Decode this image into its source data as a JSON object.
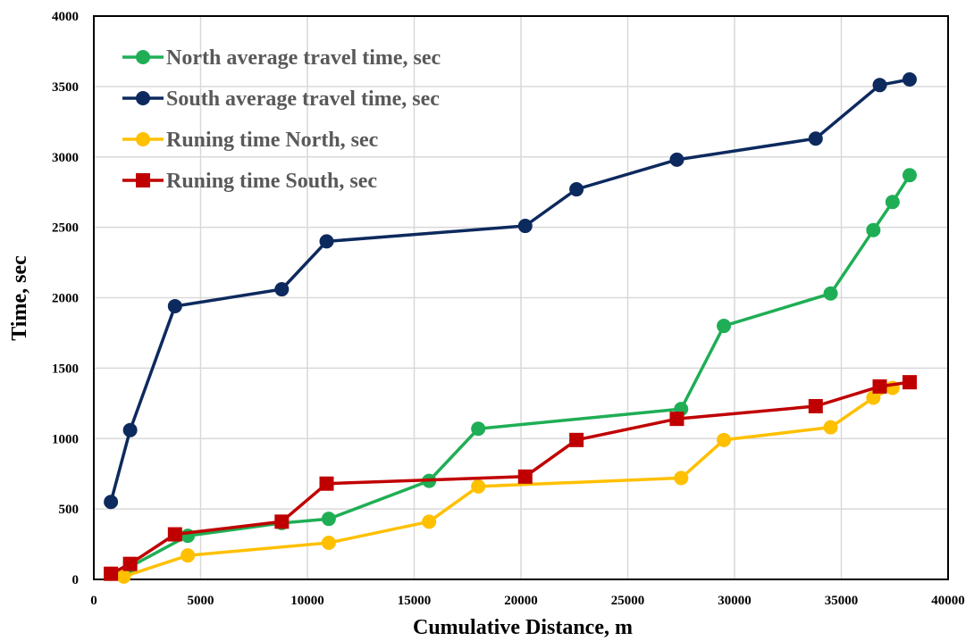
{
  "chart_data": {
    "type": "line",
    "xlabel": "Cumulative Distance, m",
    "ylabel": "Time, sec",
    "xlim": [
      0,
      40000
    ],
    "ylim": [
      0,
      4000
    ],
    "xticks": [
      "0",
      "5000",
      "10000",
      "15000",
      "20000",
      "25000",
      "30000",
      "35000",
      "40000"
    ],
    "yticks": [
      "0",
      "500",
      "1000",
      "1500",
      "2000",
      "2500",
      "3000",
      "3500",
      "4000"
    ],
    "grid": true,
    "legend_position": "top-left",
    "series": [
      {
        "name": "North average travel time, sec",
        "color": "#1fae55",
        "marker": "circle",
        "x": [
          800,
          1700,
          4400,
          8800,
          11000,
          15700,
          18000,
          27500,
          29500,
          34500,
          36500,
          37400,
          38200
        ],
        "y": [
          40,
          90,
          310,
          400,
          430,
          700,
          1070,
          1210,
          1800,
          2030,
          2480,
          2680,
          2870
        ]
      },
      {
        "name": "South average travel time, sec",
        "color": "#0d2a5e",
        "marker": "circle",
        "x": [
          800,
          1700,
          3800,
          8800,
          10900,
          20200,
          22600,
          27300,
          33800,
          36800,
          38200
        ],
        "y": [
          550,
          1060,
          1940,
          2060,
          2400,
          2510,
          2770,
          2980,
          3130,
          3510,
          3550
        ],
        "label": ""
      },
      {
        "name": "Runing time North, sec",
        "color": "#ffc000",
        "marker": "circle",
        "x": [
          1400,
          4400,
          11000,
          15700,
          18000,
          27500,
          29500,
          34500,
          36500,
          37400
        ],
        "y": [
          20,
          170,
          260,
          410,
          660,
          720,
          990,
          1080,
          1290,
          1360
        ]
      },
      {
        "name": "Runing time South, sec",
        "color": "#c00000",
        "marker": "square",
        "x": [
          800,
          1700,
          3800,
          8800,
          10900,
          20200,
          22600,
          27300,
          33800,
          36800,
          38200
        ],
        "y": [
          40,
          110,
          320,
          410,
          680,
          730,
          990,
          1140,
          1230,
          1370,
          1400
        ]
      }
    ]
  }
}
